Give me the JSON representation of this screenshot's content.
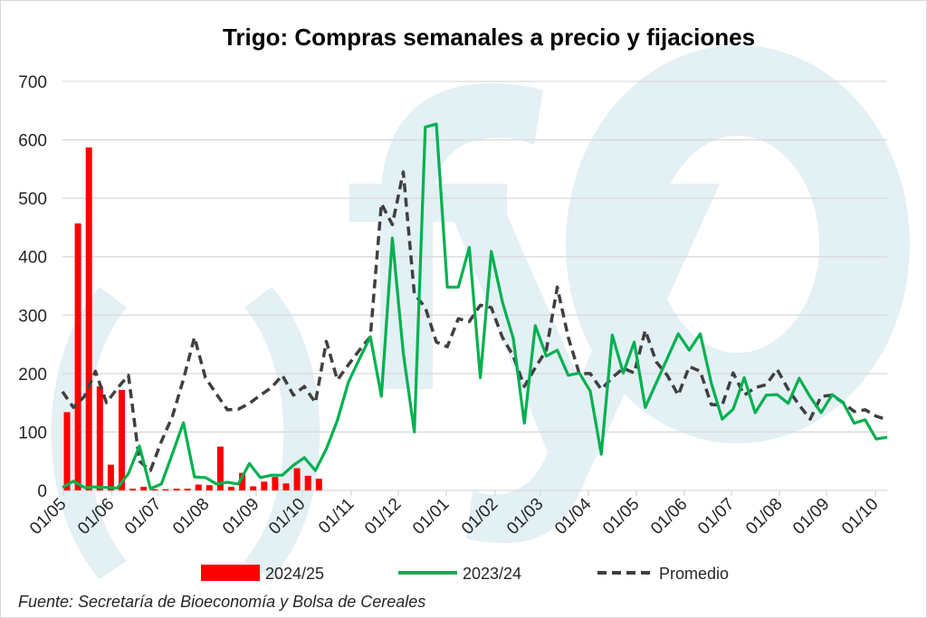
{
  "chart_data": {
    "type": "bar+line",
    "title": "Trigo: Compras semanales a precio y fijaciones",
    "source": "Fuente: Secretaría de Bioeconomía y Bolsa de Cereales",
    "xlabel": "",
    "ylabel": "",
    "ylim": [
      0,
      700
    ],
    "yticks": [
      0,
      100,
      200,
      300,
      400,
      500,
      600,
      700
    ],
    "grid": true,
    "legend_position": "bottom",
    "x_tick_labels": [
      "01/05",
      "01/06",
      "01/07",
      "01/08",
      "01/09",
      "01/10",
      "01/11",
      "01/12",
      "01/01",
      "01/02",
      "01/03",
      "01/04",
      "01/05",
      "01/06",
      "01/07",
      "01/08",
      "01/09",
      "01/10"
    ],
    "x_unit": "week index (weekly data from 01/05)",
    "series": [
      {
        "name": "2024/25",
        "type": "bar",
        "color": "#ff0000",
        "values": [
          134,
          457,
          587,
          178,
          44,
          172,
          3,
          6,
          2,
          2,
          3,
          3,
          10,
          9,
          75,
          6,
          30,
          7,
          15,
          23,
          12,
          38,
          25,
          20
        ]
      },
      {
        "name": "2023/24",
        "type": "line",
        "color": "#00b050",
        "values": [
          5,
          16,
          5,
          6,
          5,
          4,
          29,
          76,
          3,
          11,
          63,
          116,
          23,
          22,
          11,
          14,
          11,
          46,
          22,
          26,
          26,
          43,
          56,
          34,
          71,
          120,
          185,
          225,
          263,
          161,
          432,
          235,
          100,
          622,
          627,
          348,
          348,
          416,
          193,
          409,
          323,
          260,
          115,
          282,
          230,
          240,
          197,
          201,
          170,
          62,
          266,
          201,
          254,
          142,
          184,
          226,
          268,
          240,
          268,
          184,
          122,
          139,
          193,
          133,
          163,
          164,
          149,
          192,
          160,
          133,
          164,
          150,
          115,
          121,
          88,
          91
        ]
      },
      {
        "name": "Promedio",
        "type": "line-dashed",
        "color": "#404040",
        "values": [
          169,
          142,
          161,
          204,
          150,
          175,
          197,
          50,
          34,
          84,
          127,
          190,
          262,
          193,
          165,
          138,
          139,
          149,
          163,
          176,
          197,
          163,
          178,
          150,
          255,
          189,
          215,
          240,
          263,
          491,
          455,
          545,
          336,
          313,
          254,
          246,
          294,
          289,
          317,
          313,
          262,
          230,
          178,
          210,
          240,
          348,
          262,
          200,
          200,
          173,
          193,
          209,
          201,
          274,
          220,
          197,
          163,
          212,
          204,
          147,
          146,
          201,
          163,
          176,
          181,
          207,
          173,
          146,
          122,
          161,
          163,
          150,
          135,
          138,
          127,
          121
        ]
      }
    ]
  },
  "watermark": "(fyo)"
}
